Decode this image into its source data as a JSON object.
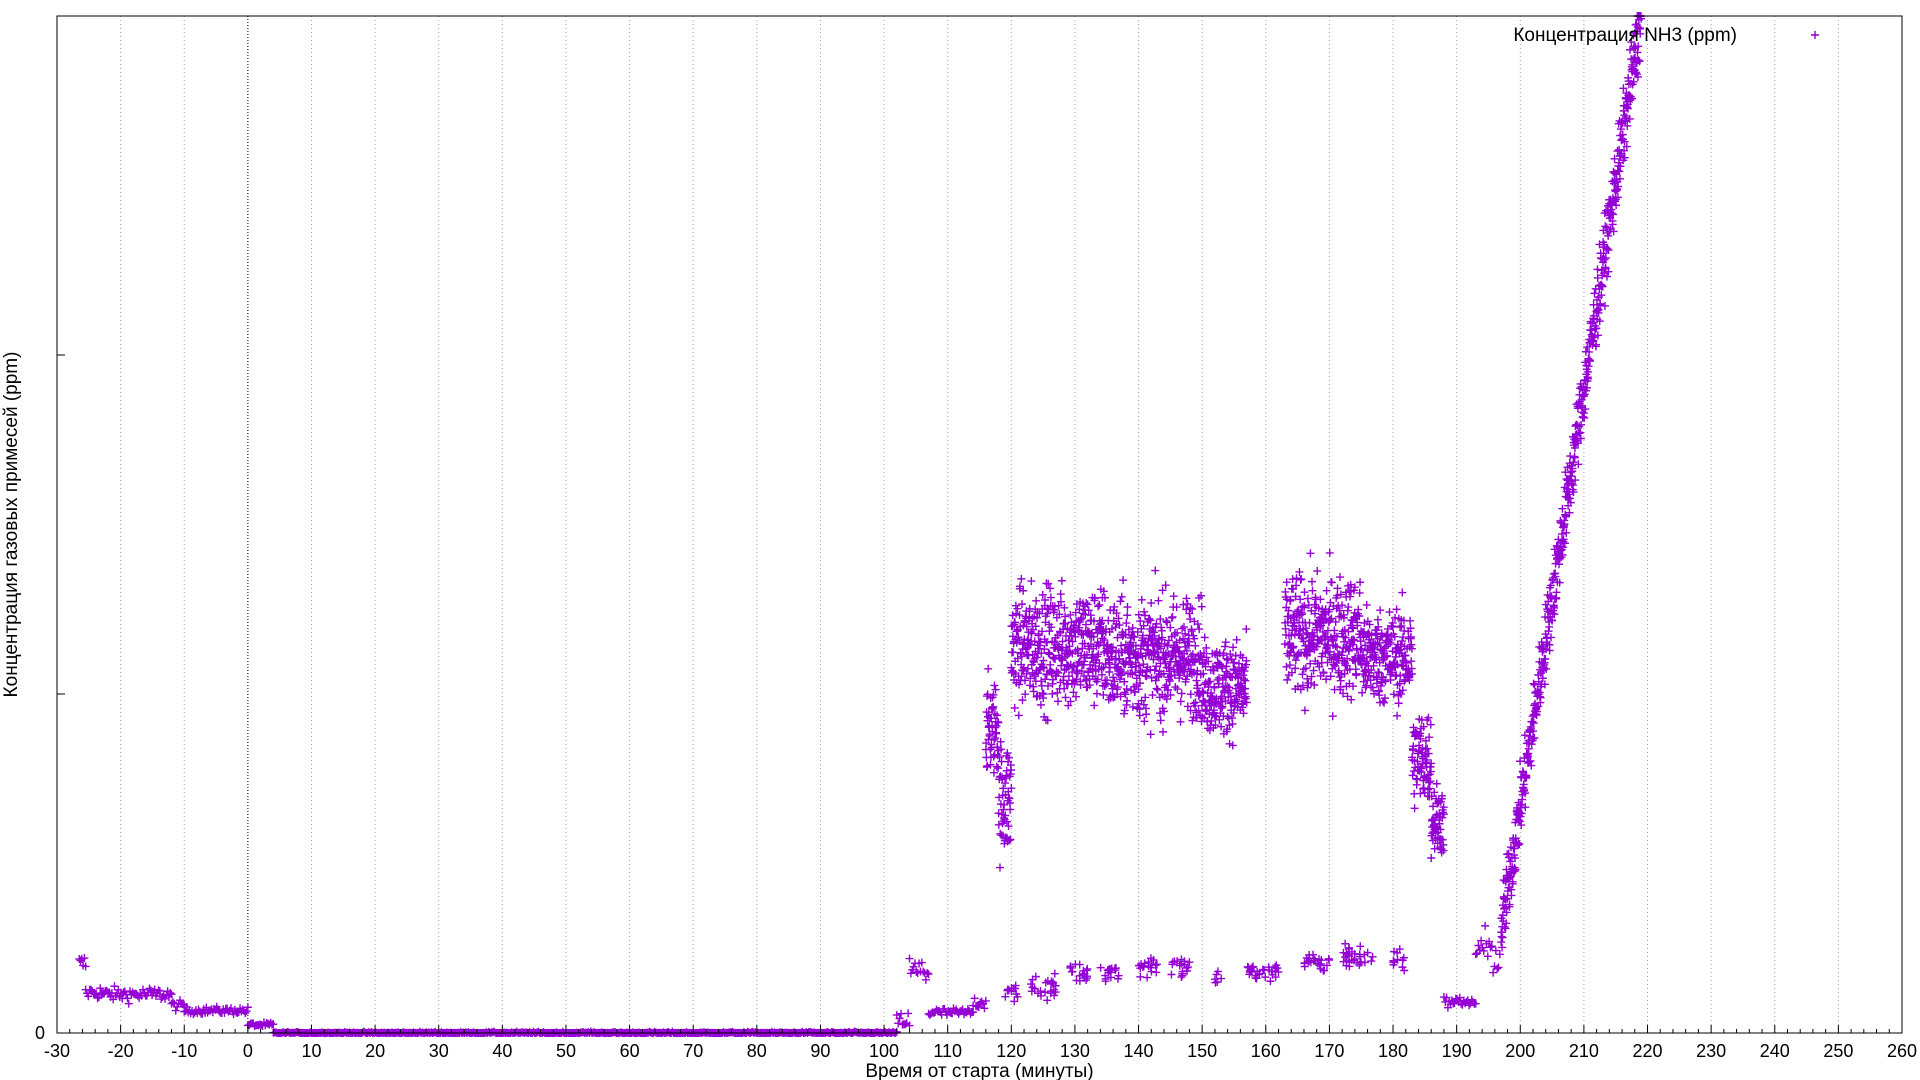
{
  "chart_data": {
    "type": "scatter",
    "xlabel": "Время от старта (минуты)",
    "ylabel": "Концентрация газовых примесей (ppm)",
    "xlim": [
      -30,
      260
    ],
    "x_ticks": [
      -30,
      -20,
      -10,
      0,
      10,
      20,
      30,
      40,
      50,
      60,
      70,
      80,
      90,
      100,
      110,
      120,
      130,
      140,
      150,
      160,
      170,
      180,
      190,
      200,
      210,
      220,
      230,
      240,
      250,
      260
    ],
    "y_tick_labels": [
      "0"
    ],
    "y_major_tick_count": 3,
    "grid": "vertical dotted",
    "legend_position": "top-right",
    "marker": "plus",
    "series": [
      {
        "name": "Концентрация NH3 (ppm)",
        "color": "#9400d3",
        "segments": [
          {
            "x_start": -26.5,
            "x_end": -25.5,
            "level": 0.068,
            "noise": 0.008
          },
          {
            "x_start": -25.5,
            "x_end": -23,
            "level": 0.04,
            "noise": 0.006
          },
          {
            "x_start": -23,
            "x_end": -12,
            "level": 0.038,
            "noise": 0.006
          },
          {
            "x_start": -12,
            "x_end": -10,
            "level": 0.027,
            "noise": 0.004
          },
          {
            "x_start": -10,
            "x_end": 0,
            "level": 0.022,
            "noise": 0.003
          },
          {
            "x_start": 0,
            "x_end": 4,
            "level": 0.008,
            "noise": 0.002
          },
          {
            "x_start": 4,
            "x_end": 102,
            "level": 0.0,
            "noise": 0.001
          },
          {
            "x_start": 102,
            "x_end": 104,
            "level": 0.012,
            "noise": 0.008
          },
          {
            "x_start": 104,
            "x_end": 107,
            "level": 0.06,
            "noise": 0.015
          },
          {
            "x_start": 107,
            "x_end": 114,
            "level": 0.02,
            "noise": 0.004
          },
          {
            "x_start": 114,
            "x_end": 116,
            "level": 0.03,
            "noise": 0.005
          },
          {
            "x_start": 116,
            "x_end": 118,
            "level": 0.3,
            "noise": 0.04
          },
          {
            "x_start": 118,
            "x_end": 120,
            "level": 0.23,
            "noise": 0.05
          },
          {
            "x_start": 120,
            "x_end": 135,
            "level": 0.38,
            "noise": 0.05
          },
          {
            "x_start": 135,
            "x_end": 150,
            "level": 0.37,
            "noise": 0.05
          },
          {
            "x_start": 150,
            "x_end": 157,
            "level": 0.34,
            "noise": 0.04
          },
          {
            "x_start": 163,
            "x_end": 175,
            "level": 0.39,
            "noise": 0.05
          },
          {
            "x_start": 175,
            "x_end": 183,
            "level": 0.37,
            "noise": 0.04
          },
          {
            "x_start": 183,
            "x_end": 186,
            "level": 0.27,
            "noise": 0.04
          },
          {
            "x_start": 186,
            "x_end": 188,
            "level": 0.21,
            "noise": 0.03
          },
          {
            "x_start": 188,
            "x_end": 193,
            "level": 0.03,
            "noise": 0.005
          },
          {
            "x_start": 193,
            "x_end": 197,
            "level": 0.08,
            "noise": 0.02
          },
          {
            "x_start": 197,
            "x_end": 219,
            "level_from": 0.1,
            "level_to": 1.0,
            "noise": 0.03
          }
        ],
        "low_cluster": [
          {
            "x_start": 119,
            "x_end": 121,
            "level": 0.04
          },
          {
            "x_start": 123,
            "x_end": 127,
            "level": 0.045
          },
          {
            "x_start": 129,
            "x_end": 132,
            "level": 0.06
          },
          {
            "x_start": 134,
            "x_end": 137,
            "level": 0.06
          },
          {
            "x_start": 140,
            "x_end": 143,
            "level": 0.065
          },
          {
            "x_start": 145,
            "x_end": 148,
            "level": 0.065
          },
          {
            "x_start": 152,
            "x_end": 153,
            "level": 0.055
          },
          {
            "x_start": 157,
            "x_end": 162,
            "level": 0.06
          },
          {
            "x_start": 166,
            "x_end": 170,
            "level": 0.07
          },
          {
            "x_start": 172,
            "x_end": 177,
            "level": 0.075
          },
          {
            "x_start": 180,
            "x_end": 182,
            "level": 0.07
          }
        ]
      }
    ]
  }
}
